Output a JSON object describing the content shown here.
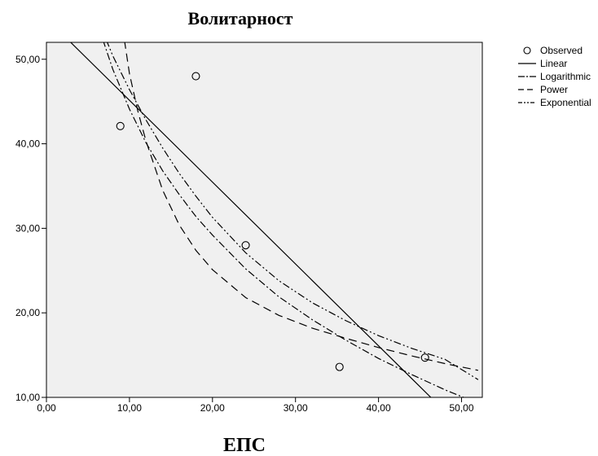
{
  "chart_data": {
    "type": "scatter",
    "title": "Волитарност",
    "xlabel": "ЕПС",
    "ylabel": "",
    "xlim": [
      0,
      52.5
    ],
    "ylim": [
      10,
      52
    ],
    "x_ticks": [
      "0,00",
      "10,00",
      "20,00",
      "30,00",
      "40,00",
      "50,00"
    ],
    "y_ticks": [
      "10,00",
      "20,00",
      "30,00",
      "40,00",
      "50,00"
    ],
    "grid": false,
    "legend_position": "top-right",
    "plot_background": "#f0f0f0",
    "series": [
      {
        "name": "Observed",
        "kind": "points",
        "marker": "open-circle",
        "x": [
          8.9,
          18.0,
          24.0,
          35.3,
          45.6
        ],
        "y": [
          42.1,
          48.0,
          28.0,
          13.6,
          14.7
        ]
      },
      {
        "name": "Linear",
        "kind": "line",
        "dash": "solid",
        "x": [
          2.5,
          46.3
        ],
        "y": [
          52.4,
          10.0
        ]
      },
      {
        "name": "Logarithmic",
        "kind": "line",
        "dash": "dash-dot",
        "x": [
          6.8,
          8.0,
          10.0,
          12.0,
          14.0,
          16.0,
          18.0,
          20.0,
          24.0,
          28.0,
          32.0,
          36.0,
          40.0,
          44.0,
          48.0,
          52.0
        ],
        "y": [
          52.3,
          48.8,
          44.1,
          40.1,
          36.8,
          34.0,
          31.4,
          29.2,
          25.2,
          21.9,
          19.2,
          16.8,
          14.6,
          12.7,
          10.9,
          9.3
        ]
      },
      {
        "name": "Power",
        "kind": "line",
        "dash": "dashed",
        "x": [
          9.4,
          10.0,
          11.0,
          12.0,
          14.0,
          16.0,
          18.0,
          20.0,
          24.0,
          28.0,
          32.0,
          36.0,
          40.0,
          44.0,
          48.0,
          52.0
        ],
        "y": [
          52.2,
          48.3,
          43.9,
          40.3,
          34.5,
          30.4,
          27.4,
          25.1,
          21.8,
          19.7,
          18.2,
          17.0,
          15.9,
          14.9,
          14.0,
          13.2
        ]
      },
      {
        "name": "Exponential",
        "kind": "line",
        "dash": "dash-dot-dot",
        "x": [
          7.2,
          8.0,
          10.0,
          12.0,
          14.0,
          16.0,
          18.0,
          20.0,
          24.0,
          28.0,
          32.0,
          36.0,
          40.0,
          44.0,
          48.0,
          52.0
        ],
        "y": [
          52.3,
          50.4,
          46.4,
          42.8,
          39.5,
          36.5,
          33.8,
          31.3,
          27.1,
          23.8,
          21.2,
          19.1,
          17.3,
          15.8,
          14.5,
          12.1
        ]
      }
    ]
  }
}
